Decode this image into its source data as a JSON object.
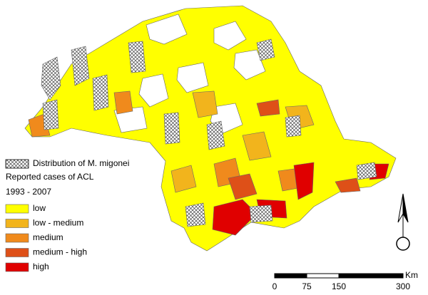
{
  "legend": {
    "pattern_label": "Distribution of M. migonei",
    "title": "Reported cases of ACL",
    "period": "1993 - 2007",
    "classes": [
      {
        "label": "low",
        "color": "#ffff00"
      },
      {
        "label": "low - medium",
        "color": "#f2b41c"
      },
      {
        "label": "medium",
        "color": "#f08a1c"
      },
      {
        "label": "medium - high",
        "color": "#de5018"
      },
      {
        "label": "high",
        "color": "#e00000"
      }
    ]
  },
  "scale": {
    "unit": "Km",
    "ticks": [
      0,
      75,
      150,
      300
    ]
  }
}
